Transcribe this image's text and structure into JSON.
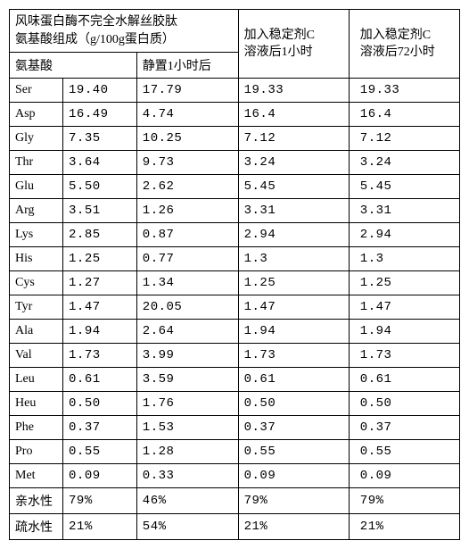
{
  "header": {
    "main_title_line1": "风味蛋白酶不完全水解丝胶肽",
    "main_title_line2": "氨基酸组成（g/100g蛋白质）",
    "sub_left": "氨基酸",
    "sub_right": "静置1小时后",
    "col_d_line1": "加入稳定剂C",
    "col_d_line2": "溶液后1小时",
    "col_e_line1": "加入稳定剂C",
    "col_e_line2": "溶液后72小时"
  },
  "rows": [
    {
      "a": "Ser",
      "b": "19.40",
      "c": "17.79",
      "d": "19.33",
      "e": "19.33"
    },
    {
      "a": "Asp",
      "b": "16.49",
      "c": "4.74",
      "d": "16.4",
      "e": "16.4"
    },
    {
      "a": "Gly",
      "b": "7.35",
      "c": "10.25",
      "d": "7.12",
      "e": "7.12"
    },
    {
      "a": "Thr",
      "b": "3.64",
      "c": "9.73",
      "d": "3.24",
      "e": "3.24"
    },
    {
      "a": "Glu",
      "b": "5.50",
      "c": "2.62",
      "d": "5.45",
      "e": "5.45"
    },
    {
      "a": "Arg",
      "b": "3.51",
      "c": "1.26",
      "d": "3.31",
      "e": "3.31"
    },
    {
      "a": "Lys",
      "b": "2.85",
      "c": "0.87",
      "d": "2.94",
      "e": "2.94"
    },
    {
      "a": "His",
      "b": "1.25",
      "c": "0.77",
      "d": "1.3",
      "e": "1.3"
    },
    {
      "a": "Cys",
      "b": "1.27",
      "c": "1.34",
      "d": "1.25",
      "e": "1.25"
    },
    {
      "a": "Tyr",
      "b": "1.47",
      "c": "20.05",
      "d": "1.47",
      "e": "1.47"
    },
    {
      "a": "Ala",
      "b": "1.94",
      "c": "2.64",
      "d": "1.94",
      "e": "1.94"
    },
    {
      "a": "Val",
      "b": "1.73",
      "c": "3.99",
      "d": "1.73",
      "e": "1.73"
    },
    {
      "a": "Leu",
      "b": "0.61",
      "c": "3.59",
      "d": "0.61",
      "e": "0.61"
    },
    {
      "a": "Heu",
      "b": "0.50",
      "c": "1.76",
      "d": "0.50",
      "e": "0.50"
    },
    {
      "a": "Phe",
      "b": "0.37",
      "c": "1.53",
      "d": "0.37",
      "e": "0.37"
    },
    {
      "a": "Pro",
      "b": "0.55",
      "c": "1.28",
      "d": "0.55",
      "e": "0.55"
    },
    {
      "a": "Met",
      "b": "0.09",
      "c": "0.33",
      "d": "0.09",
      "e": "0.09"
    },
    {
      "a": "亲水性",
      "b": "79%",
      "c": "46%",
      "d": "79%",
      "e": "79%"
    },
    {
      "a": "疏水性",
      "b": "21%",
      "c": "54%",
      "d": "21%",
      "e": "21%"
    }
  ],
  "style": {
    "font_size_pt": 10.5,
    "border_color": "#000000",
    "background_color": "#ffffff",
    "text_color": "#000000"
  }
}
